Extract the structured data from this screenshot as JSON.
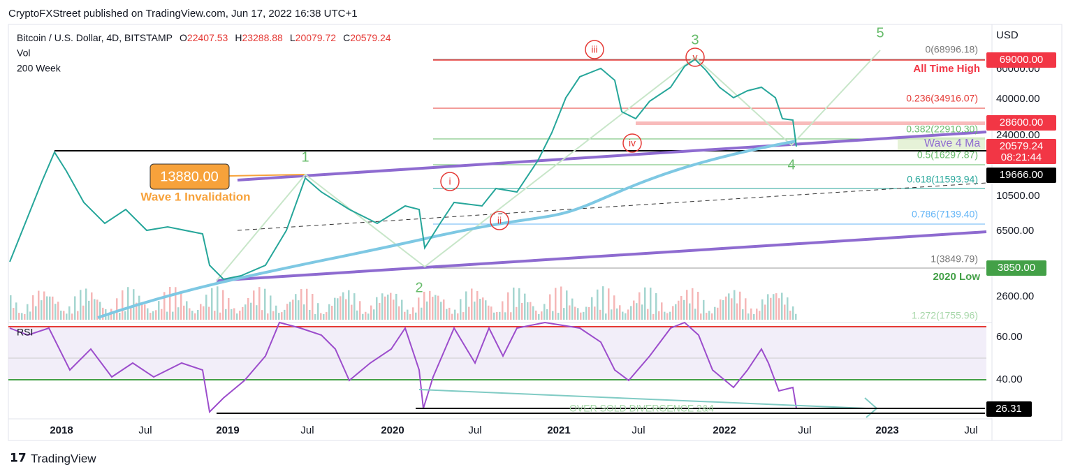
{
  "header": {
    "published": "CryptoFXStreet published on TradingView.com, Jun 17, 2022 16:38 UTC+1"
  },
  "legend": {
    "symbol": "Bitcoin / U.S. Dollar, 4D, BITSTAMP",
    "o": "O",
    "open": "22407.53",
    "h": "H",
    "high": "23288.88",
    "l": "L",
    "low": "20079.72",
    "c": "C",
    "close": "20579.24",
    "vol": "Vol",
    "ma": "200 Week",
    "rsi": "RSI"
  },
  "price_axis": {
    "currency": "USD",
    "labels": [
      "60000.00",
      "40000.00",
      "24000.00",
      "10500.00",
      "6500.00",
      "2600.00"
    ],
    "rsi_labels": [
      "60.00",
      "40.00"
    ]
  },
  "badges": {
    "ath": "69000.00",
    "level_28600": "28600.00",
    "last": "20579.24",
    "countdown": "08:21:44",
    "level_19666": "19666.00",
    "low_2020": "3850.00",
    "rsi_value": "26.31",
    "invalidation": "13880.00"
  },
  "fib_levels": [
    "0(68996.18)",
    "0.236(34916.07)",
    "0.382(22910.30)",
    "0.5(16297.87)",
    "0.618(11593.94)",
    "0.786(7139.40)",
    "1(3849.79)",
    "1.272(1755.96)"
  ],
  "annotations": {
    "all_time_high": "All Time High",
    "low_2020": "2020 Low",
    "wave1_invalidation": "Wave 1 Invalidation",
    "wave4": "Wave 4 Ma",
    "divergence": "OVER SOLD DIVERGENCE 2&4"
  },
  "waves": [
    "1",
    "2",
    "3",
    "4",
    "5"
  ],
  "subwaves": [
    "i",
    "ii",
    "iii",
    "iv",
    "v"
  ],
  "time_axis": [
    "2018",
    "Jul",
    "2019",
    "Jul",
    "2020",
    "Jul",
    "2021",
    "Jul",
    "2022",
    "Jul",
    "2023",
    "Jul"
  ],
  "footer": {
    "brand": "TradingView"
  }
}
